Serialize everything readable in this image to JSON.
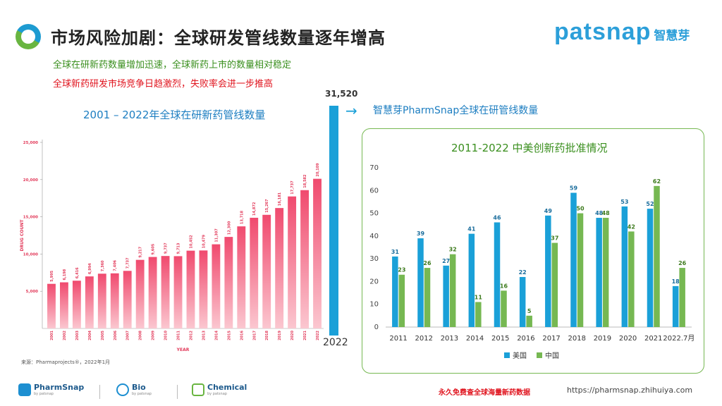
{
  "header": {
    "title": "市场风险加剧：全球研发管线数量逐年增高",
    "brand": "patsnap",
    "brand_cn": "智慧芽"
  },
  "subtitles": [
    "全球在研新药数量增加迅速，全球新药上市的数量相对稳定",
    "全球新药研发市场竞争日趋激烈，失败率会进一步推高"
  ],
  "callout": {
    "value": "31,520",
    "year": "2022",
    "arrow": "→",
    "label": "智慧芽PharmSnap全球在研管线数量",
    "value_num": 31520
  },
  "footer": {
    "logos": [
      {
        "name": "PharmSnap",
        "sub": "by patsnap",
        "color": "#1d8fd1"
      },
      {
        "name": "Bio",
        "sub": "by patsnap",
        "color": "#1d8fd1"
      },
      {
        "name": "Chemical",
        "sub": "by patsnap",
        "color": "#69b541"
      }
    ],
    "promo": "永久免费查全球海量新药数据",
    "url": "https://pharmsnap.zhihuiya.com"
  },
  "colors": {
    "blue": "#1aa0d8",
    "green": "#76b852",
    "pink_top": "#f04a6e",
    "pink_bottom": "#fbc7d0"
  },
  "chart_data": [
    {
      "type": "bar",
      "title": "2001 – 2022年全球在研新药管线数量",
      "xlabel": "YEAR",
      "ylabel": "DRUG COUNT",
      "source": "来源：Pharmaprojects®，2022年1月",
      "ylim": [
        0,
        25000
      ],
      "yticks": [
        5000,
        10000,
        15000,
        20000,
        25000
      ],
      "ytick_labels": [
        "5,000",
        "10,000",
        "15,000",
        "20,000",
        "25,000"
      ],
      "categories": [
        "2001",
        "2002",
        "2003",
        "2004",
        "2005",
        "2006",
        "2007",
        "2008",
        "2009",
        "2010",
        "2011",
        "2012",
        "2013",
        "2014",
        "2015",
        "2016",
        "2017",
        "2018",
        "2019",
        "2020",
        "2021",
        "2022"
      ],
      "values": [
        5995,
        6198,
        6416,
        6994,
        7360,
        7406,
        7737,
        9217,
        9605,
        9737,
        9713,
        10452,
        10479,
        11307,
        12300,
        13718,
        14872,
        15267,
        16181,
        17737,
        18582,
        20109
      ],
      "value_labels": [
        "5,995",
        "6,198",
        "6,416",
        "6,994",
        "7,360",
        "7,406",
        "7,737",
        "9,217",
        "9,605",
        "9,737",
        "9,713",
        "10,452",
        "10,479",
        "11,307",
        "12,300",
        "13,718",
        "14,872",
        "15,267",
        "16,181",
        "17,737",
        "18,582",
        "20,109"
      ]
    },
    {
      "type": "bar",
      "title": "2011-2022 中美创新药批准情况",
      "ylim": [
        0,
        70
      ],
      "yticks": [
        0,
        10,
        20,
        30,
        40,
        50,
        60,
        70
      ],
      "categories": [
        "2011",
        "2012",
        "2013",
        "2014",
        "2015",
        "2016",
        "2017",
        "2018",
        "2019",
        "2020",
        "2021",
        "2022.7月"
      ],
      "series": [
        {
          "name": "美国",
          "color": "#1aa0d8",
          "values": [
            31,
            39,
            27,
            41,
            46,
            22,
            49,
            59,
            48,
            53,
            52,
            18
          ]
        },
        {
          "name": "中国",
          "color": "#76b852",
          "values": [
            23,
            26,
            32,
            11,
            16,
            5,
            37,
            50,
            48,
            42,
            62,
            26
          ]
        }
      ],
      "legend_position": "bottom-center"
    }
  ]
}
